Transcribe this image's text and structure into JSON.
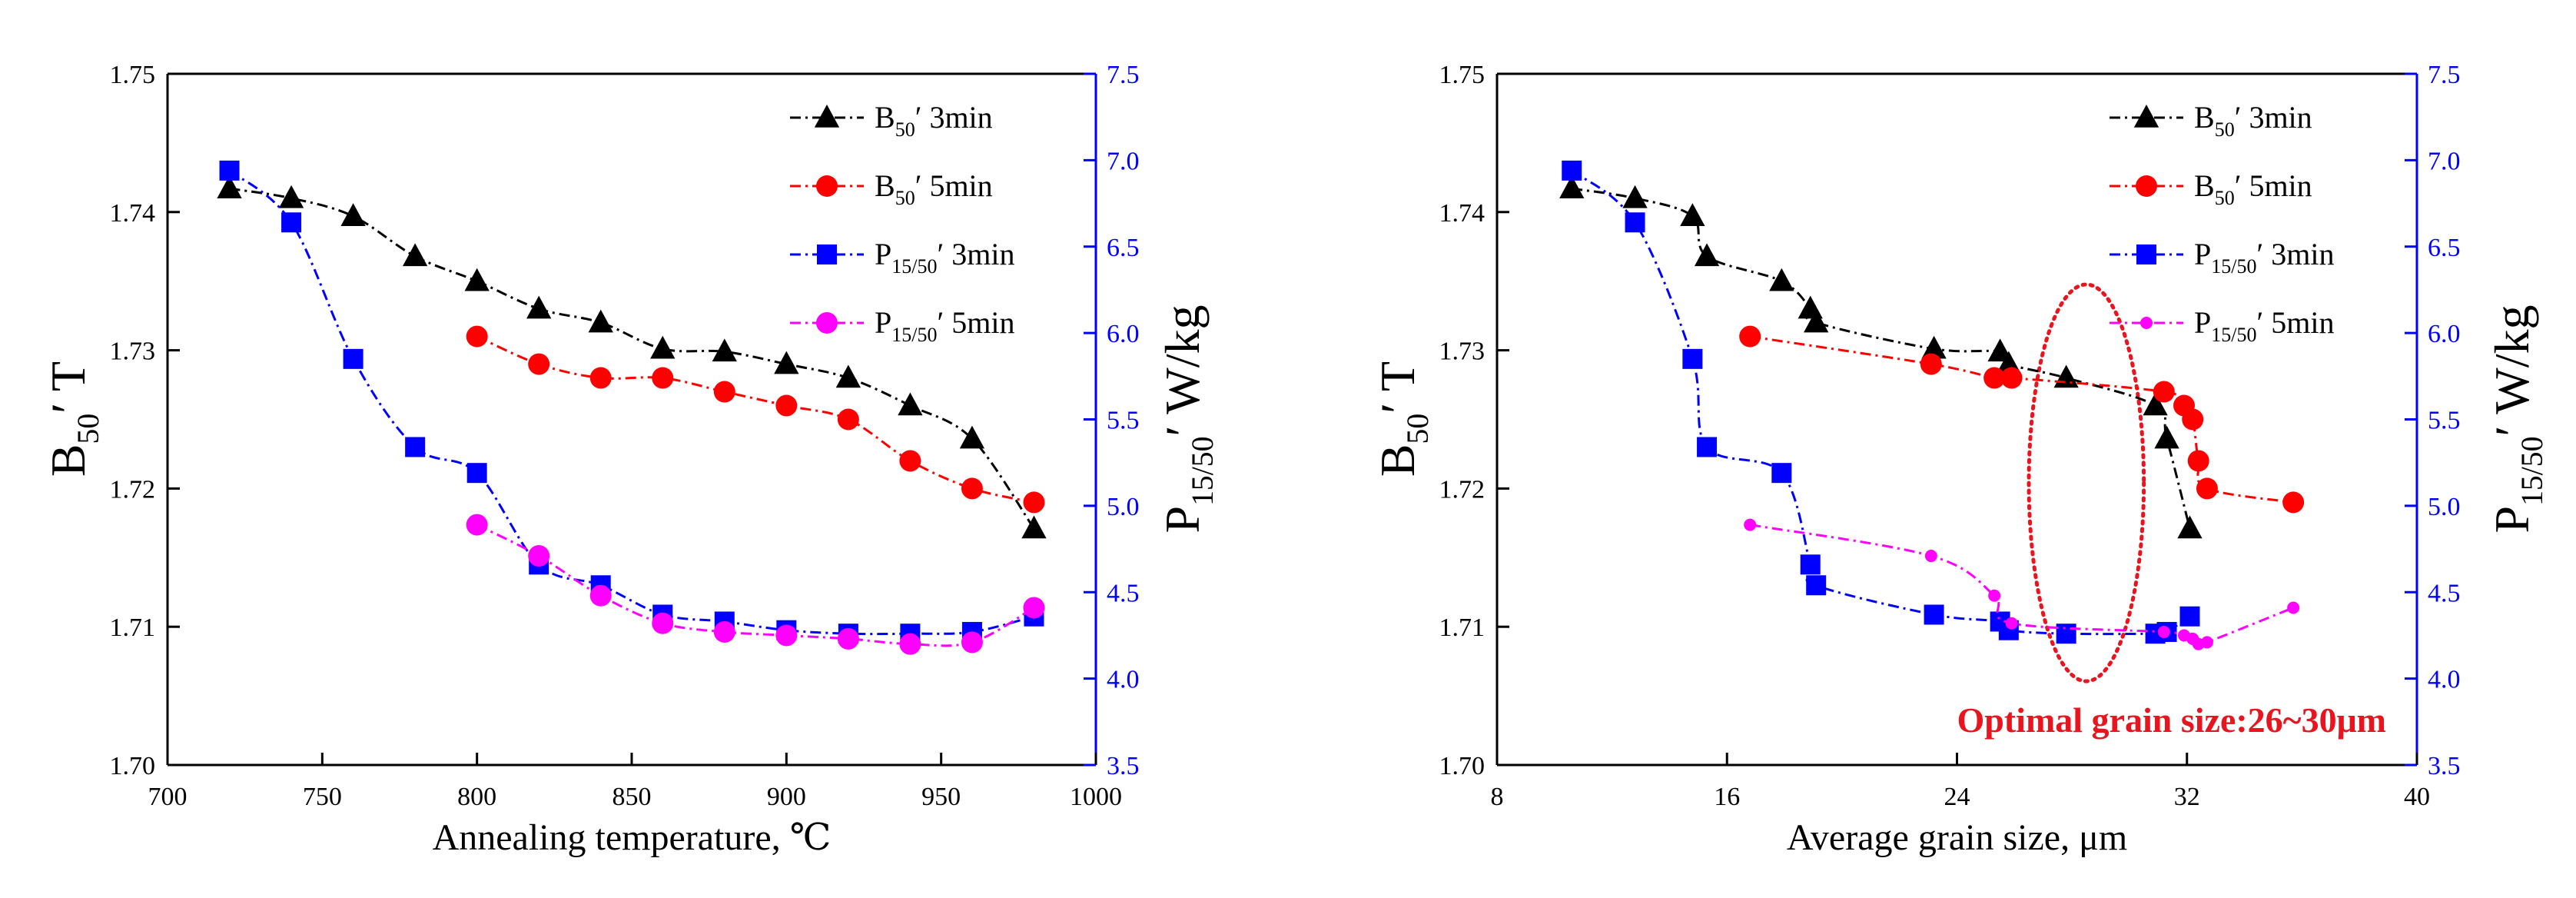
{
  "chart_data": [
    {
      "type": "line",
      "xlabel": "Annealing temperature, ℃",
      "ylabel_left": {
        "main": "B",
        "sub": "50",
        "suffix": "′ T"
      },
      "ylabel_right": {
        "main": "P",
        "sub": "15/50",
        "suffix": "′ W/kg"
      },
      "xlim": [
        700,
        1000
      ],
      "ylim_left": [
        1.7,
        1.75
      ],
      "ylim_right": [
        3.5,
        7.5
      ],
      "x_ticks": [
        "700",
        "750",
        "800",
        "850",
        "900",
        "950",
        "1000"
      ],
      "y_left_ticks": [
        "1.70",
        "1.71",
        "1.72",
        "1.73",
        "1.74",
        "1.75"
      ],
      "y_right_ticks": [
        "3.5",
        "4.0",
        "4.5",
        "5.0",
        "5.5",
        "6.0",
        "6.5",
        "7.0",
        "7.5"
      ],
      "legend_position": "top-right",
      "series": [
        {
          "name": "B50′ 3min",
          "legend": {
            "main": "B",
            "sub": "50",
            "suffix": "′ 3min"
          },
          "axis": "left",
          "color": "#000000",
          "marker": "triangle",
          "x": [
            720,
            740,
            760,
            780,
            800,
            820,
            840,
            860,
            880,
            900,
            920,
            940,
            960,
            980
          ],
          "y": [
            1.7417,
            1.741,
            1.7397,
            1.7368,
            1.735,
            1.733,
            1.732,
            1.7301,
            1.7299,
            1.729,
            1.728,
            1.726,
            1.7236,
            1.7171
          ]
        },
        {
          "name": "B50′ 5min",
          "legend": {
            "main": "B",
            "sub": "50",
            "suffix": "′ 5min"
          },
          "axis": "left",
          "color": "#ff0000",
          "marker": "circle",
          "x": [
            800,
            820,
            840,
            860,
            880,
            900,
            920,
            940,
            960,
            980
          ],
          "y": [
            1.731,
            1.729,
            1.728,
            1.728,
            1.727,
            1.726,
            1.725,
            1.722,
            1.72,
            1.719
          ]
        },
        {
          "name": "P15/50′ 3min",
          "legend": {
            "main": "P",
            "sub": "15/50",
            "suffix": "′ 3min"
          },
          "axis": "right",
          "color": "#0000ff",
          "marker": "square",
          "x": [
            720,
            740,
            760,
            780,
            800,
            820,
            840,
            860,
            880,
            900,
            920,
            940,
            960,
            980
          ],
          "y": [
            6.94,
            6.64,
            5.85,
            5.34,
            5.19,
            4.66,
            4.54,
            4.37,
            4.33,
            4.28,
            4.26,
            4.26,
            4.27,
            4.36
          ]
        },
        {
          "name": "P15/50′ 5min",
          "legend": {
            "main": "P",
            "sub": "15/50",
            "suffix": "′ 5min"
          },
          "axis": "right",
          "color": "#ff00ff",
          "marker": "circle",
          "x": [
            800,
            820,
            840,
            860,
            880,
            900,
            920,
            940,
            960,
            980
          ],
          "y": [
            4.89,
            4.71,
            4.48,
            4.32,
            4.27,
            4.25,
            4.23,
            4.2,
            4.21,
            4.41
          ]
        }
      ]
    },
    {
      "type": "line",
      "xlabel": "Average grain size, μm",
      "ylabel_left": {
        "main": "B",
        "sub": "50",
        "suffix": "′ T"
      },
      "ylabel_right": {
        "main": "P",
        "sub": "15/50",
        "suffix": "′ W/kg"
      },
      "xlim": [
        8,
        40
      ],
      "ylim_left": [
        1.7,
        1.75
      ],
      "ylim_right": [
        3.5,
        7.5
      ],
      "x_ticks": [
        "8",
        "16",
        "24",
        "32",
        "40"
      ],
      "y_left_ticks": [
        "1.70",
        "1.71",
        "1.72",
        "1.73",
        "1.74",
        "1.75"
      ],
      "y_right_ticks": [
        "3.5",
        "4.0",
        "4.5",
        "5.0",
        "5.5",
        "6.0",
        "6.5",
        "7.0",
        "7.5"
      ],
      "legend_position": "top-right",
      "annotation": "Optimal grain size:26~30μm",
      "annotation_color": "#e8141e",
      "highlight_ellipse_x_range": [
        26.5,
        30.5
      ],
      "series": [
        {
          "name": "B50′ 3min",
          "legend": {
            "main": "B",
            "sub": "50",
            "suffix": "′ 3min"
          },
          "axis": "left",
          "color": "#000000",
          "marker": "triangle",
          "x": [
            10.6,
            12.8,
            14.8,
            15.3,
            17.9,
            18.9,
            19.1,
            23.2,
            25.5,
            25.8,
            27.8,
            30.9,
            31.3,
            32.1
          ],
          "y": [
            1.7417,
            1.741,
            1.7397,
            1.7368,
            1.735,
            1.733,
            1.732,
            1.7301,
            1.7299,
            1.729,
            1.728,
            1.726,
            1.7236,
            1.7171
          ]
        },
        {
          "name": "B50′ 5min",
          "legend": {
            "main": "B",
            "sub": "50",
            "suffix": "′ 5min"
          },
          "axis": "left",
          "color": "#ff0000",
          "marker": "circle",
          "x": [
            16.8,
            23.1,
            25.3,
            25.9,
            31.2,
            31.9,
            32.2,
            32.4,
            32.7,
            35.7
          ],
          "y": [
            1.731,
            1.729,
            1.728,
            1.728,
            1.727,
            1.726,
            1.725,
            1.722,
            1.72,
            1.719
          ]
        },
        {
          "name": "P15/50′ 3min",
          "legend": {
            "main": "P",
            "sub": "15/50",
            "suffix": "′ 3min"
          },
          "axis": "right",
          "color": "#0000ff",
          "marker": "square",
          "x": [
            10.6,
            12.8,
            14.8,
            15.3,
            17.9,
            18.9,
            19.1,
            23.2,
            25.5,
            25.8,
            27.8,
            30.9,
            31.3,
            32.1
          ],
          "y": [
            6.94,
            6.64,
            5.85,
            5.34,
            5.19,
            4.66,
            4.54,
            4.37,
            4.33,
            4.28,
            4.26,
            4.26,
            4.27,
            4.36
          ]
        },
        {
          "name": "P15/50′ 5min",
          "legend": {
            "main": "P",
            "sub": "15/50",
            "suffix": "′ 5min"
          },
          "axis": "right",
          "color": "#ff00ff",
          "marker": "dot",
          "x": [
            16.8,
            23.1,
            25.3,
            25.9,
            31.2,
            31.9,
            32.2,
            32.4,
            32.7,
            35.7
          ],
          "y": [
            4.89,
            4.71,
            4.48,
            4.32,
            4.27,
            4.25,
            4.23,
            4.2,
            4.21,
            4.41
          ]
        }
      ]
    }
  ]
}
